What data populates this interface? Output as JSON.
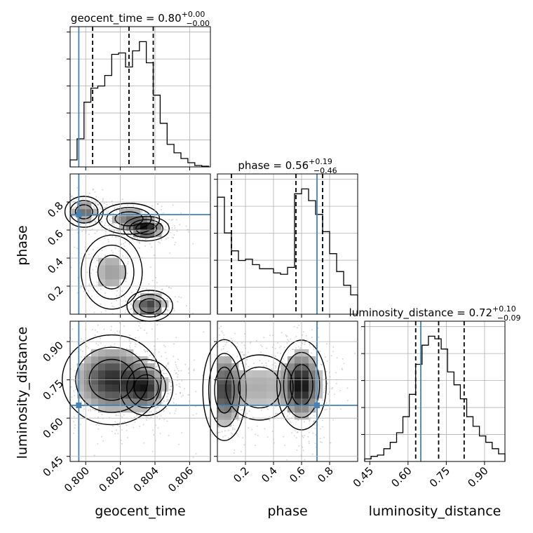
{
  "chart_data": {
    "type": "corner",
    "parameters": [
      "geocent_time",
      "phase",
      "luminosity_distance"
    ],
    "truths": [
      0.7996,
      0.71,
      0.65
    ],
    "colors": {
      "truth": "#4682b4",
      "hist": "#000000",
      "grid": "#b0b0b0"
    },
    "diagonal": [
      {
        "title_name": "geocent_time",
        "title_value": "0.80",
        "title_plus": "+0.00",
        "title_minus": "−0.00",
        "range": [
          0.7991,
          0.8072
        ],
        "quantiles": [
          0.8004,
          0.8025,
          0.8039
        ],
        "bin_edges": [
          0.7991,
          0.7995,
          0.7999,
          0.8003,
          0.8007,
          0.8011,
          0.8015,
          0.8019,
          0.8023,
          0.8027,
          0.8031,
          0.8035,
          0.8039,
          0.8043,
          0.8047,
          0.8051,
          0.8055,
          0.8059,
          0.8063,
          0.8067,
          0.8071
        ],
        "counts": [
          10,
          40,
          92,
          112,
          115,
          130,
          160,
          162,
          142,
          165,
          178,
          148,
          102,
          62,
          32,
          20,
          12,
          6,
          2,
          1
        ]
      },
      {
        "title_name": "phase",
        "title_value": "0.56",
        "title_plus": "+0.19",
        "title_minus": "−0.46",
        "range": [
          0.0,
          1.0
        ],
        "quantiles": [
          0.1,
          0.56,
          0.75
        ],
        "bin_edges": [
          0.0,
          0.05,
          0.1,
          0.15,
          0.2,
          0.25,
          0.3,
          0.35,
          0.4,
          0.45,
          0.5,
          0.55,
          0.6,
          0.65,
          0.7,
          0.75,
          0.8,
          0.85,
          0.9,
          0.95,
          1.0
        ],
        "counts": [
          170,
          118,
          92,
          78,
          80,
          72,
          66,
          66,
          60,
          58,
          68,
          175,
          182,
          165,
          145,
          120,
          88,
          62,
          42,
          28
        ]
      },
      {
        "title_name": "luminosity_distance",
        "title_value": "0.72",
        "title_plus": "+0.10",
        "title_minus": "−0.09",
        "range": [
          0.43,
          0.98
        ],
        "quantiles": [
          0.63,
          0.72,
          0.82
        ],
        "bin_edges": [
          0.43,
          0.455,
          0.48,
          0.505,
          0.53,
          0.555,
          0.58,
          0.605,
          0.63,
          0.655,
          0.68,
          0.705,
          0.73,
          0.755,
          0.78,
          0.805,
          0.83,
          0.855,
          0.88,
          0.905,
          0.93,
          0.955,
          0.98
        ],
        "counts": [
          4,
          8,
          10,
          20,
          30,
          45,
          70,
          105,
          152,
          182,
          196,
          192,
          176,
          140,
          120,
          98,
          70,
          55,
          40,
          30,
          20,
          12
        ]
      }
    ],
    "pairs": [
      {
        "x": "geocent_time",
        "y": "phase",
        "xrange": [
          0.7991,
          0.8072
        ],
        "yrange": [
          0.0,
          1.0
        ],
        "modes": [
          {
            "cx": 0.7999,
            "cy": 0.73,
            "sx": 0.0005,
            "sy": 0.05,
            "w": 0.7
          },
          {
            "cx": 0.8035,
            "cy": 0.61,
            "sx": 0.0006,
            "sy": 0.04,
            "w": 1.0
          },
          {
            "cx": 0.8025,
            "cy": 0.68,
            "sx": 0.0008,
            "sy": 0.05,
            "w": 0.6
          },
          {
            "cx": 0.8015,
            "cy": 0.3,
            "sx": 0.0008,
            "sy": 0.12,
            "w": 0.45
          },
          {
            "cx": 0.8037,
            "cy": 0.06,
            "sx": 0.0006,
            "sy": 0.05,
            "w": 0.9
          }
        ]
      },
      {
        "x": "geocent_time",
        "y": "luminosity_distance",
        "xrange": [
          0.7991,
          0.8072
        ],
        "yrange": [
          0.43,
          0.98
        ],
        "modes": [
          {
            "cx": 0.8015,
            "cy": 0.75,
            "sx": 0.0013,
            "sy": 0.08,
            "w": 1.0
          },
          {
            "cx": 0.8035,
            "cy": 0.72,
            "sx": 0.0007,
            "sy": 0.05,
            "w": 0.8
          }
        ]
      },
      {
        "x": "phase",
        "y": "luminosity_distance",
        "xrange": [
          0.0,
          1.0
        ],
        "yrange": [
          0.43,
          0.98
        ],
        "modes": [
          {
            "cx": 0.6,
            "cy": 0.73,
            "sx": 0.08,
            "sy": 0.08,
            "w": 1.0
          },
          {
            "cx": 0.05,
            "cy": 0.71,
            "sx": 0.07,
            "sy": 0.09,
            "w": 0.75
          },
          {
            "cx": 0.3,
            "cy": 0.72,
            "sx": 0.15,
            "sy": 0.08,
            "w": 0.35
          }
        ]
      }
    ],
    "x_ticks": {
      "geocent_time": [
        "0.800",
        "0.802",
        "0.804",
        "0.806"
      ],
      "phase": [
        "0.2",
        "0.4",
        "0.6",
        "0.8"
      ],
      "luminosity_distance": [
        "0.45",
        "0.60",
        "0.75",
        "0.90"
      ]
    },
    "y_ticks": {
      "phase": [
        "0.2",
        "0.4",
        "0.6",
        "0.8"
      ],
      "luminosity_distance": [
        "0.45",
        "0.60",
        "0.75",
        "0.90"
      ]
    },
    "x_tick_values": {
      "geocent_time": [
        0.8,
        0.802,
        0.804,
        0.806
      ],
      "phase": [
        0.2,
        0.4,
        0.6,
        0.8
      ],
      "luminosity_distance": [
        0.45,
        0.6,
        0.75,
        0.9
      ]
    },
    "y_tick_values": {
      "phase": [
        0.2,
        0.4,
        0.6,
        0.8
      ],
      "luminosity_distance": [
        0.45,
        0.6,
        0.75,
        0.9
      ]
    },
    "xlabels": [
      "geocent_time",
      "phase",
      "luminosity_distance"
    ],
    "ylabels": [
      "phase",
      "luminosity_distance"
    ],
    "grid": true
  }
}
